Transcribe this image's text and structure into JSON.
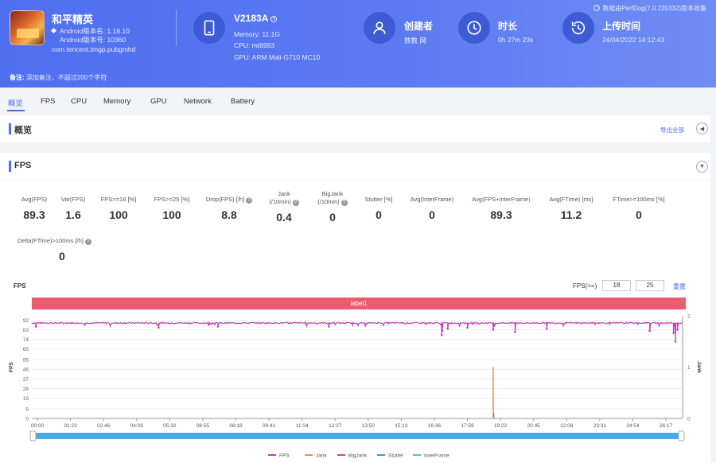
{
  "header": {
    "app_name": "和平精英",
    "android_version": "Android版本名: 1.18.10",
    "android_code": "Android版本号: 10360",
    "package": "com.tencent.tmgp.pubgmhd",
    "device": {
      "title": "V2183A",
      "memory": "Memory: 11.1G",
      "cpu": "CPU: mt6983",
      "gpu": "GPU: ARM Mali-G710 MC10"
    },
    "creator": {
      "title": "创建者",
      "value": "数数 网"
    },
    "duration": {
      "title": "时长",
      "value": "0h 27m 23s"
    },
    "upload": {
      "title": "上传时间",
      "value": "24/04/2022 14:12:43"
    },
    "data_source": "数据由PerfDog(7.0.220332)版本收集",
    "remark_label": "备注:",
    "remark_placeholder": "添加备注，不超过200个字符"
  },
  "tabs": [
    "概览",
    "FPS",
    "CPU",
    "Memory",
    "GPU",
    "Network",
    "Battery"
  ],
  "active_tab": "概览",
  "overview": {
    "title": "概览",
    "export": "导出全部"
  },
  "fps_section": {
    "title": "FPS"
  },
  "metrics": [
    {
      "label": "Avg(FPS)",
      "value": "89.3"
    },
    {
      "label": "Var(FPS)",
      "value": "1.6"
    },
    {
      "label": "FPS>=18 [%]",
      "value": "100"
    },
    {
      "label": "FPS>=25 [%]",
      "value": "100"
    },
    {
      "label": "Drop(FPS) [/h]",
      "value": "8.8"
    },
    {
      "label": "Jank\n(/10min)",
      "value": "0.4"
    },
    {
      "label": "BigJank\n(/10min)",
      "value": "0"
    },
    {
      "label": "Stutter [%]",
      "value": "0"
    },
    {
      "label": "Avg(InterFrame)",
      "value": "0"
    },
    {
      "label": "Avg(FPS+InterFrame)",
      "value": "89.3"
    },
    {
      "label": "Avg(FTime) [ms]",
      "value": "11.2"
    },
    {
      "label": "FTime>=100ms [%]",
      "value": "0"
    },
    {
      "label": "Delta(FTime)>100ms [/h]",
      "value": "0"
    }
  ],
  "chart_controls": {
    "fps_label": "FPS",
    "threshold_label": "FPS(>=)",
    "threshold_1": "18",
    "threshold_2": "25",
    "reset": "重置",
    "band_label": "label1"
  },
  "colors": {
    "fps": "#c53dbf",
    "jank": "#f28d4b",
    "bigjank": "#e8465a",
    "stutter": "#4a90e2",
    "interframe": "#5bc0de",
    "accent": "#4a6cf7"
  },
  "chart_data": {
    "type": "line",
    "title": "FPS",
    "ylabel_left": "FPS",
    "ylabel_right": "Jank",
    "yticks_left": [
      0,
      9,
      19,
      28,
      37,
      46,
      55,
      65,
      74,
      83,
      92
    ],
    "yticks_right": [
      0,
      1,
      2
    ],
    "xticks": [
      "00:00",
      "01:23",
      "02:46",
      "04:09",
      "05:32",
      "06:55",
      "08:18",
      "09:41",
      "11:04",
      "12:27",
      "13:50",
      "15:13",
      "16:36",
      "17:59",
      "19:22",
      "20:45",
      "22:08",
      "23:31",
      "24:54",
      "26:17"
    ],
    "x_range_seconds": [
      0,
      1643
    ],
    "ylim_left": [
      0,
      100
    ],
    "ylim_right": [
      0,
      2
    ],
    "series": [
      {
        "name": "FPS",
        "baseline": 89.3,
        "dips": [
          {
            "t": 1035,
            "fps": 78
          },
          {
            "t": 1036,
            "fps": 82
          },
          {
            "t": 1050,
            "fps": 84
          },
          {
            "t": 1100,
            "fps": 85
          },
          {
            "t": 1165,
            "fps": 83
          },
          {
            "t": 1220,
            "fps": 81
          },
          {
            "t": 1300,
            "fps": 84
          },
          {
            "t": 1560,
            "fps": 82
          },
          {
            "t": 1620,
            "fps": 80
          },
          {
            "t": 1625,
            "fps": 72
          },
          {
            "t": 1630,
            "fps": 83
          },
          {
            "t": 320,
            "fps": 85
          },
          {
            "t": 470,
            "fps": 86
          },
          {
            "t": 750,
            "fps": 86
          },
          {
            "t": 10,
            "fps": 86
          }
        ]
      },
      {
        "name": "Jank",
        "events": [
          {
            "t": 1165,
            "value": 1
          }
        ]
      },
      {
        "name": "BigJank",
        "events": []
      },
      {
        "name": "Stutter",
        "events": [
          {
            "t": 1166,
            "value": 0.1
          }
        ]
      },
      {
        "name": "InterFrame",
        "events": []
      }
    ],
    "legend": [
      "FPS",
      "Jank",
      "BigJank",
      "Stutter",
      "InterFrame"
    ],
    "legend_position": "bottom"
  }
}
